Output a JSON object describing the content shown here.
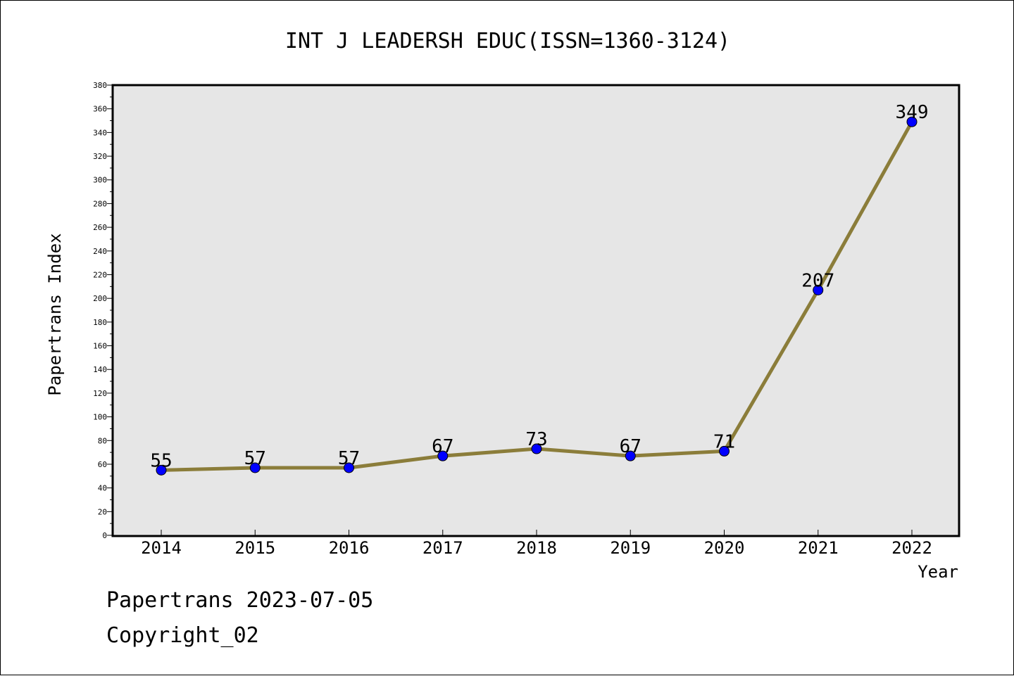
{
  "chart_data": {
    "type": "line",
    "title": "INT J LEADERSH EDUC(ISSN=1360-3124)",
    "xlabel": "Year",
    "ylabel": "Papertrans Index",
    "categories": [
      "2014",
      "2015",
      "2016",
      "2017",
      "2018",
      "2019",
      "2020",
      "2021",
      "2022"
    ],
    "series": [
      {
        "values": [
          55,
          57,
          57,
          67,
          73,
          67,
          71,
          207,
          349
        ]
      }
    ],
    "ylim": [
      0,
      380
    ],
    "yticks": [
      0,
      20,
      40,
      60,
      80,
      100,
      120,
      140,
      160,
      180,
      200,
      220,
      240,
      260,
      280,
      300,
      320,
      340,
      360,
      380
    ],
    "grid": false,
    "legend": "none",
    "colors": {
      "line": "#8b7d3a",
      "marker": "#0000ff",
      "plot_bg": "#e6e6e6"
    }
  },
  "footer": {
    "line1": "Papertrans 2023-07-05",
    "line2": "Copyright_02"
  }
}
